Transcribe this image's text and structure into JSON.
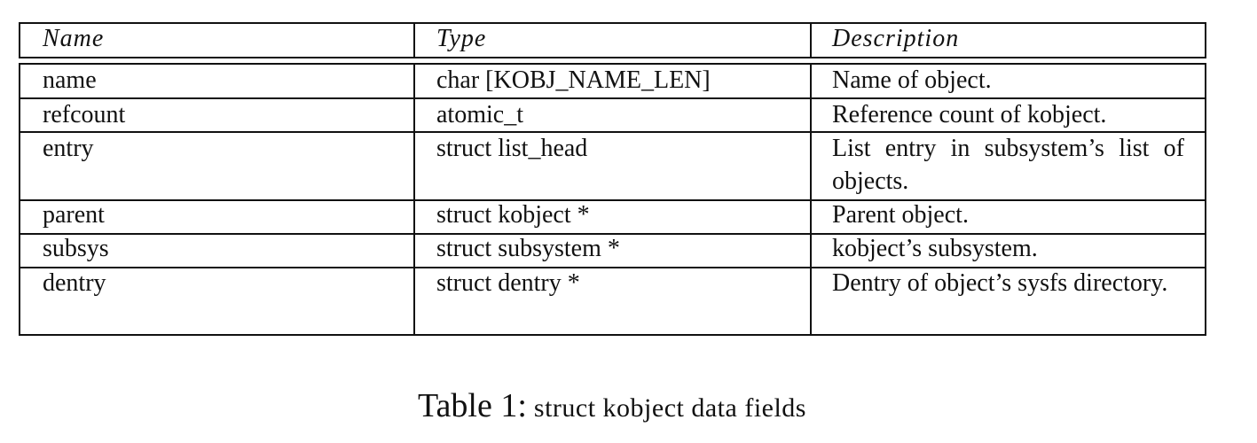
{
  "table": {
    "headers": [
      "Name",
      "Type",
      "Description"
    ],
    "rows": [
      {
        "name": "name",
        "type": "char [KOBJ_NAME_LEN]",
        "description": "Name of object."
      },
      {
        "name": "refcount",
        "type": "atomic_t",
        "description": "Reference count of kobject."
      },
      {
        "name": "entry",
        "type": "struct list_head",
        "description": "List entry in subsystem’s list of objects."
      },
      {
        "name": "parent",
        "type": "struct kobject *",
        "description": "Parent object."
      },
      {
        "name": "subsys",
        "type": "struct subsystem *",
        "description": "kobject’s subsystem."
      },
      {
        "name": "dentry",
        "type": "struct dentry *",
        "description": "Dentry of object’s sysfs directory."
      }
    ]
  },
  "caption": {
    "label": "Table 1:",
    "text": "struct kobject data fields"
  }
}
